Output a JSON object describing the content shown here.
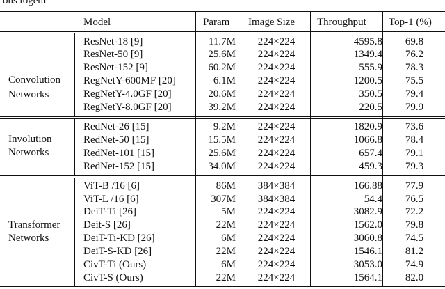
{
  "caption_fragment": "ons togeth",
  "columns": [
    "Model",
    "Param",
    "Image Size",
    "Throughput",
    "Top-1 (%)"
  ],
  "groups": [
    {
      "label_line1": "Convolution",
      "label_line2": "Networks",
      "rows": [
        {
          "model": "ResNet-18 [9]",
          "param": "11.7M",
          "image_size": "224×224",
          "throughput": "4595.8",
          "top1": "69.8"
        },
        {
          "model": "ResNet-50 [9]",
          "param": "25.6M",
          "image_size": "224×224",
          "throughput": "1349.4",
          "top1": "76.2"
        },
        {
          "model": "ResNet-152 [9]",
          "param": "60.2M",
          "image_size": "224×224",
          "throughput": "555.9",
          "top1": "78.3"
        },
        {
          "model": "RegNetY-600MF [20]",
          "param": "6.1M",
          "image_size": "224×224",
          "throughput": "1200.5",
          "top1": "75.5"
        },
        {
          "model": "RegNetY-4.0GF [20]",
          "param": "20.6M",
          "image_size": "224×224",
          "throughput": "350.5",
          "top1": "79.4"
        },
        {
          "model": "RegNetY-8.0GF [20]",
          "param": "39.2M",
          "image_size": "224×224",
          "throughput": "220.5",
          "top1": "79.9"
        }
      ]
    },
    {
      "label_line1": "Involution",
      "label_line2": "Networks",
      "rows": [
        {
          "model": "RedNet-26 [15]",
          "param": "9.2M",
          "image_size": "224×224",
          "throughput": "1820.9",
          "top1": "73.6"
        },
        {
          "model": "RedNet-50 [15]",
          "param": "15.5M",
          "image_size": "224×224",
          "throughput": "1066.8",
          "top1": "78.4"
        },
        {
          "model": "RedNet-101 [15]",
          "param": "25.6M",
          "image_size": "224×224",
          "throughput": "657.4",
          "top1": "79.1"
        },
        {
          "model": "RedNet-152 [15]",
          "param": "34.0M",
          "image_size": "224×224",
          "throughput": "459.3",
          "top1": "79.3"
        }
      ]
    },
    {
      "label_line1": "Transformer",
      "label_line2": "Networks",
      "rows": [
        {
          "model": "ViT-B /16 [6]",
          "param": "86M",
          "image_size": "384×384",
          "throughput": "166.88",
          "top1": "77.9"
        },
        {
          "model": "ViT-L /16 [6]",
          "param": "307M",
          "image_size": "384×384",
          "throughput": "54.4",
          "top1": "76.5"
        },
        {
          "model": "DeiT-Ti [26]",
          "param": "5M",
          "image_size": "224×224",
          "throughput": "3082.9",
          "top1": "72.2"
        },
        {
          "model": "Deit-S [26]",
          "param": "22M",
          "image_size": "224×224",
          "throughput": "1562.0",
          "top1": "79.8"
        },
        {
          "model": "DeiT-Ti-KD [26]",
          "param": "6M",
          "image_size": "224×224",
          "throughput": "3060.8",
          "top1": "74.5"
        },
        {
          "model": "DeiT-S-KD [26]",
          "param": "22M",
          "image_size": "224×224",
          "throughput": "1546.1",
          "top1": "81.2"
        },
        {
          "model": "CivT-Ti (Ours)",
          "param": "6M",
          "image_size": "224×224",
          "throughput": "3053.0",
          "top1": "74.9"
        },
        {
          "model": "CivT-S (Ours)",
          "param": "22M",
          "image_size": "224×224",
          "throughput": "1564.1",
          "top1": "82.0"
        }
      ]
    }
  ]
}
